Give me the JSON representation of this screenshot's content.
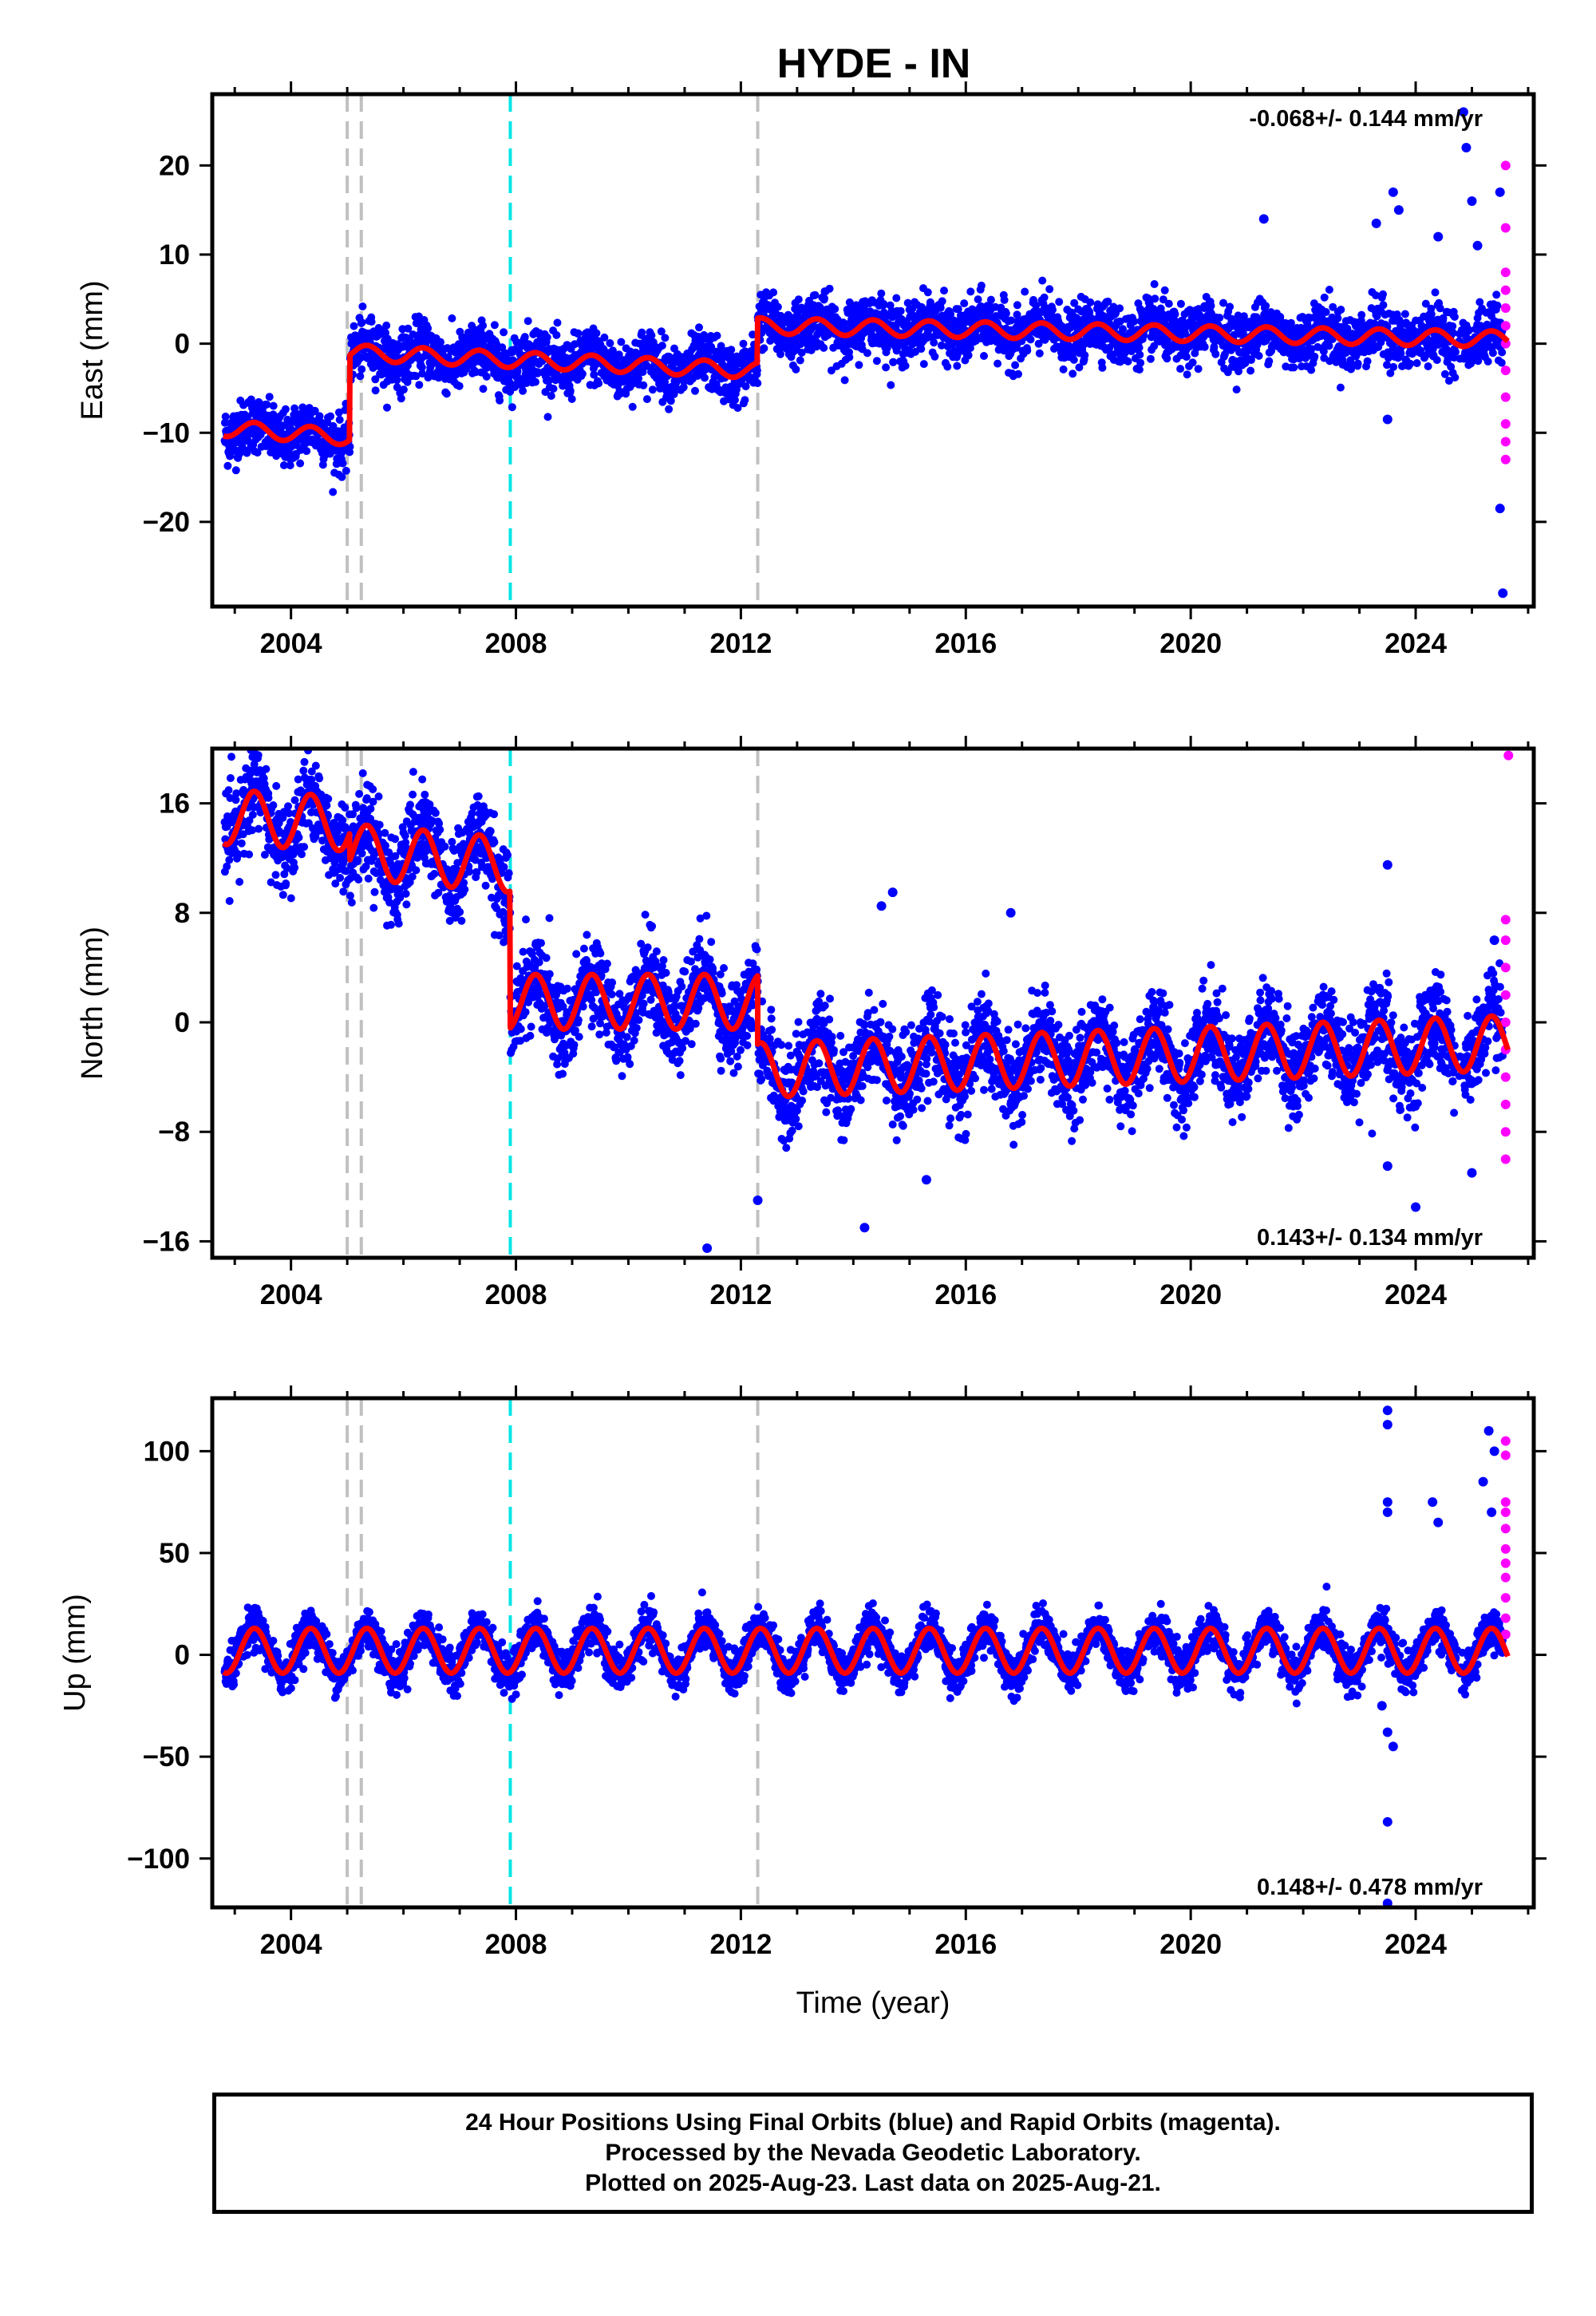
{
  "title": "HYDE - IN",
  "footer": {
    "line1": "24 Hour Positions Using Final Orbits (blue) and Rapid Orbits (magenta).",
    "line2": "Processed by the Nevada Geodetic Laboratory.",
    "line3": "Plotted on 2025-Aug-23. Last data on 2025-Aug-21."
  },
  "colors": {
    "final_orbits": "#0000ff",
    "rapid_orbits": "#ff00ff",
    "model_fit": "#ff0000",
    "equipment_change": "#c0c0c0",
    "earthquake": "#00e5e5"
  },
  "chart_data": [
    {
      "type": "scatter",
      "name": "east",
      "ylabel": "East (mm)",
      "xlabel": "",
      "xlim": [
        2002.6,
        2026.1
      ],
      "ylim": [
        -29.5,
        28
      ],
      "xticks": [
        2004,
        2008,
        2012,
        2016,
        2020,
        2024
      ],
      "yticks": [
        -20,
        -10,
        0,
        10,
        20
      ],
      "rate": "-0.068+/- 0.144 mm/yr",
      "rate_position": "top-right",
      "grid": false,
      "offsets": [
        {
          "t": 2002.8,
          "v": -9.5
        },
        {
          "t": 2005.05,
          "v": -2.5
        },
        {
          "t": 2012.3,
          "v": 1.5
        }
      ],
      "trend_mm_per_yr": -0.068,
      "annual_amplitude_mm": 0.9,
      "noise_mm": 1.6,
      "trend_ranges": [
        {
          "t0": 2002.8,
          "t1": 2005.05,
          "v0": -9.5,
          "v1": -10.5
        },
        {
          "t0": 2005.05,
          "t1": 2012.3,
          "v0": -1.0,
          "v1": -3.0
        },
        {
          "t0": 2012.3,
          "t1": 2025.65,
          "v0": 2.0,
          "v1": 0.5
        }
      ],
      "outliers": [
        [
          2024.85,
          26
        ],
        [
          2024.9,
          22
        ],
        [
          2025.0,
          16
        ],
        [
          2023.3,
          13.5
        ],
        [
          2023.6,
          17
        ],
        [
          2023.7,
          15
        ],
        [
          2021.3,
          14
        ],
        [
          2024.4,
          12
        ],
        [
          2025.1,
          11
        ],
        [
          2023.5,
          -8.5
        ],
        [
          2025.5,
          -18.5
        ],
        [
          2025.55,
          -28
        ],
        [
          2025.5,
          17
        ]
      ],
      "rapid_points": [
        [
          2025.6,
          20
        ],
        [
          2025.6,
          13
        ],
        [
          2025.6,
          8
        ],
        [
          2025.6,
          6
        ],
        [
          2025.6,
          4
        ],
        [
          2025.6,
          2
        ],
        [
          2025.6,
          0
        ],
        [
          2025.6,
          -3
        ],
        [
          2025.6,
          -6
        ],
        [
          2025.6,
          -9
        ],
        [
          2025.6,
          -11
        ],
        [
          2025.6,
          -13
        ]
      ]
    },
    {
      "type": "scatter",
      "name": "north",
      "ylabel": "North (mm)",
      "xlabel": "",
      "xlim": [
        2002.6,
        2026.1
      ],
      "ylim": [
        -17.2,
        20
      ],
      "xticks": [
        2004,
        2008,
        2012,
        2016,
        2020,
        2024
      ],
      "yticks": [
        -16,
        -8,
        0,
        8,
        16
      ],
      "rate": "0.143+/- 0.134 mm/yr",
      "rate_position": "bottom-right",
      "grid": false,
      "annual_amplitude_mm": 2.0,
      "noise_mm": 1.6,
      "trend_ranges": [
        {
          "t0": 2002.8,
          "t1": 2005.05,
          "v0": 15.0,
          "v1": 14.5
        },
        {
          "t0": 2005.05,
          "t1": 2007.9,
          "v0": 12.5,
          "v1": 11.5
        },
        {
          "t0": 2007.9,
          "t1": 2012.3,
          "v0": 1.5,
          "v1": 1.5
        },
        {
          "t0": 2012.3,
          "t1": 2025.65,
          "v0": -3.5,
          "v1": -1.5
        }
      ],
      "outliers": [
        [
          2014.7,
          9.5
        ],
        [
          2014.5,
          8.5
        ],
        [
          2016.8,
          8
        ],
        [
          2023.5,
          11.5
        ],
        [
          2025.4,
          6
        ],
        [
          2011.4,
          -16.5
        ],
        [
          2014.2,
          -15
        ],
        [
          2012.3,
          -13
        ],
        [
          2024.0,
          -13.5
        ],
        [
          2023.5,
          -10.5
        ],
        [
          2025.0,
          -11
        ],
        [
          2015.3,
          -11.5
        ]
      ],
      "rapid_points": [
        [
          2025.65,
          19.5
        ],
        [
          2025.6,
          7.5
        ],
        [
          2025.6,
          6
        ],
        [
          2025.6,
          4
        ],
        [
          2025.6,
          2
        ],
        [
          2025.6,
          0
        ],
        [
          2025.6,
          -2
        ],
        [
          2025.6,
          -4
        ],
        [
          2025.6,
          -6
        ],
        [
          2025.6,
          -8
        ],
        [
          2025.6,
          -10
        ]
      ]
    },
    {
      "type": "scatter",
      "name": "up",
      "ylabel": "Up (mm)",
      "xlabel": "Time (year)",
      "xlim": [
        2002.6,
        2026.1
      ],
      "ylim": [
        -124,
        126
      ],
      "xticks": [
        2004,
        2008,
        2012,
        2016,
        2020,
        2024
      ],
      "yticks": [
        -100,
        -50,
        0,
        50,
        100
      ],
      "rate": "0.148+/- 0.478 mm/yr",
      "rate_position": "bottom-right",
      "grid": false,
      "annual_amplitude_mm": 11,
      "noise_mm": 5,
      "trend_ranges": [
        {
          "t0": 2002.8,
          "t1": 2025.65,
          "v0": 2.0,
          "v1": 2.0
        }
      ],
      "outliers": [
        [
          2023.5,
          120
        ],
        [
          2023.5,
          113
        ],
        [
          2023.5,
          75
        ],
        [
          2023.5,
          70
        ],
        [
          2023.5,
          -82
        ],
        [
          2023.5,
          -122
        ],
        [
          2023.5,
          -38
        ],
        [
          2024.3,
          75
        ],
        [
          2024.4,
          65
        ],
        [
          2025.3,
          110
        ],
        [
          2025.4,
          100
        ],
        [
          2025.2,
          85
        ],
        [
          2025.35,
          70
        ],
        [
          2023.4,
          -25
        ],
        [
          2023.6,
          -45
        ]
      ],
      "rapid_points": [
        [
          2025.6,
          105
        ],
        [
          2025.6,
          98
        ],
        [
          2025.6,
          75
        ],
        [
          2025.6,
          70
        ],
        [
          2025.6,
          62
        ],
        [
          2025.6,
          52
        ],
        [
          2025.6,
          45
        ],
        [
          2025.6,
          38
        ],
        [
          2025.6,
          28
        ],
        [
          2025.6,
          18
        ],
        [
          2025.6,
          10
        ]
      ]
    }
  ],
  "vertical_lines": [
    {
      "year": 2005.0,
      "kind": "equipment_change"
    },
    {
      "year": 2005.25,
      "kind": "equipment_change"
    },
    {
      "year": 2007.9,
      "kind": "earthquake"
    },
    {
      "year": 2012.3,
      "kind": "equipment_change"
    }
  ]
}
